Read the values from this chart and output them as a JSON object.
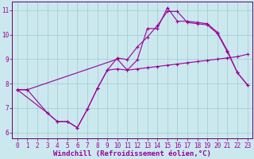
{
  "background_color": "#cce8ef",
  "line_color": "#990099",
  "grid_color": "#99cccc",
  "spine_color": "#660066",
  "xlabel": "Windchill (Refroidissement éolien,°C)",
  "xlim": [
    -0.5,
    23.5
  ],
  "ylim": [
    5.75,
    11.35
  ],
  "yticks": [
    6,
    7,
    8,
    9,
    10,
    11
  ],
  "xticks": [
    0,
    1,
    2,
    3,
    4,
    5,
    6,
    7,
    8,
    9,
    10,
    11,
    12,
    13,
    14,
    15,
    16,
    17,
    18,
    19,
    20,
    21,
    22,
    23
  ],
  "line1_x": [
    0,
    1,
    10,
    11,
    12,
    13,
    14,
    15,
    16,
    17,
    18,
    19,
    20,
    21,
    22,
    23
  ],
  "line1_y": [
    7.75,
    7.75,
    9.0,
    8.55,
    8.97,
    10.25,
    10.25,
    11.1,
    10.55,
    10.55,
    10.5,
    10.45,
    10.1,
    9.35,
    8.45,
    7.95
  ],
  "line2_x": [
    0,
    1,
    3,
    4,
    5,
    6,
    7,
    8,
    9,
    10,
    11,
    12,
    13,
    14,
    15,
    16,
    17,
    18,
    19,
    20,
    21,
    22,
    23
  ],
  "line2_y": [
    7.75,
    7.75,
    6.8,
    6.45,
    6.45,
    6.2,
    6.95,
    7.8,
    8.55,
    8.6,
    8.55,
    8.6,
    8.65,
    8.7,
    8.75,
    8.8,
    8.85,
    8.9,
    8.95,
    9.0,
    9.05,
    9.1,
    9.2
  ],
  "line3_x": [
    0,
    3,
    4,
    5,
    6,
    7,
    8,
    9,
    10,
    11,
    12,
    13,
    14,
    15,
    16,
    17,
    18,
    19,
    20,
    21,
    22,
    23
  ],
  "line3_y": [
    7.75,
    6.8,
    6.45,
    6.45,
    6.2,
    6.95,
    7.8,
    8.55,
    9.05,
    8.98,
    9.5,
    9.9,
    10.37,
    10.95,
    10.95,
    10.5,
    10.45,
    10.4,
    10.05,
    9.3,
    8.45,
    7.95
  ],
  "tick_fontsize": 5.5,
  "label_fontsize": 6.5,
  "marker": "+",
  "markersize": 3,
  "markeredgewidth": 0.8,
  "linewidth": 0.8
}
